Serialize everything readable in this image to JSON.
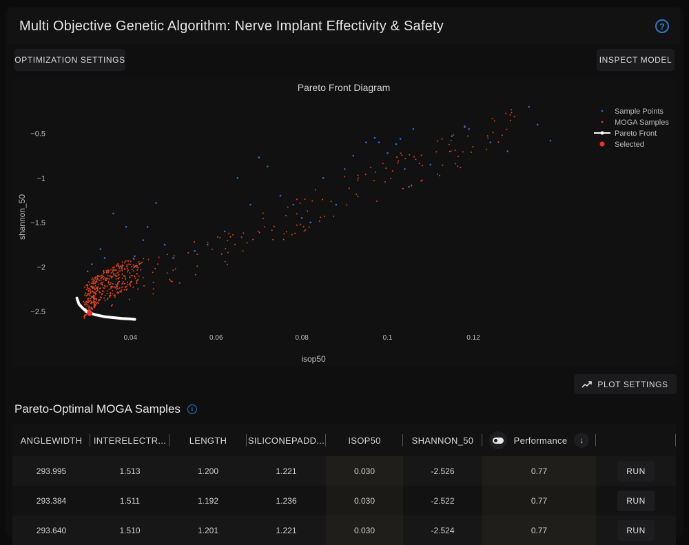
{
  "header": {
    "title": "Multi Objective Genetic Algorithm: Nerve Implant Effectivity & Safety",
    "help_icon": "question-circle-icon"
  },
  "toolbar": {
    "optimization_settings": "OPTIMIZATION SETTINGS",
    "inspect_model": "INSPECT MODEL",
    "plot_settings": "PLOT SETTINGS"
  },
  "chart_data": {
    "type": "scatter",
    "title": "Pareto Front Diagram",
    "xlabel": "isop50",
    "ylabel": "shannon_50",
    "xlim": [
      0.025,
      0.143
    ],
    "ylim": [
      -2.64,
      -0.2
    ],
    "xticks": [
      0.04,
      0.06,
      0.08,
      0.1,
      0.12
    ],
    "yticks": [
      -0.5,
      -1,
      -1.5,
      -2,
      -2.5
    ],
    "xtick_labels": [
      "0.04",
      "0.06",
      "0.08",
      "0.1",
      "0.12"
    ],
    "ytick_labels": [
      "−0.5",
      "−1",
      "−1.5",
      "−2",
      "−2.5"
    ],
    "legend_position": "top-right",
    "colors": {
      "sample_points": "#2d6fd6",
      "moga_samples": "#e0441a",
      "pareto_front": "#ffffff",
      "selected": "#ff2a2a"
    },
    "series": [
      {
        "name": "Sample Points",
        "marker": "dot",
        "points": [
          [
            0.036,
            -1.4
          ],
          [
            0.038,
            -2.0
          ],
          [
            0.039,
            -1.55
          ],
          [
            0.041,
            -1.88
          ],
          [
            0.043,
            -1.7
          ],
          [
            0.044,
            -1.55
          ],
          [
            0.046,
            -1.28
          ],
          [
            0.048,
            -1.75
          ],
          [
            0.05,
            -1.9
          ],
          [
            0.055,
            -1.82
          ],
          [
            0.058,
            -1.75
          ],
          [
            0.062,
            -1.6
          ],
          [
            0.065,
            -1.0
          ],
          [
            0.068,
            -1.3
          ],
          [
            0.07,
            -0.77
          ],
          [
            0.072,
            -0.87
          ],
          [
            0.075,
            -1.2
          ],
          [
            0.078,
            -1.3
          ],
          [
            0.08,
            -1.45
          ],
          [
            0.082,
            -1.5
          ],
          [
            0.085,
            -1.0
          ],
          [
            0.088,
            -1.3
          ],
          [
            0.09,
            -0.9
          ],
          [
            0.092,
            -0.75
          ],
          [
            0.095,
            -0.6
          ],
          [
            0.097,
            -0.55
          ],
          [
            0.098,
            -0.6
          ],
          [
            0.1,
            -0.72
          ],
          [
            0.102,
            -0.62
          ],
          [
            0.103,
            -0.56
          ],
          [
            0.104,
            -0.9
          ],
          [
            0.105,
            -1.1
          ],
          [
            0.106,
            -0.45
          ],
          [
            0.11,
            -0.85
          ],
          [
            0.115,
            -0.53
          ],
          [
            0.118,
            -0.42
          ],
          [
            0.119,
            -0.45
          ],
          [
            0.124,
            -0.6
          ],
          [
            0.128,
            -0.7
          ],
          [
            0.133,
            -0.2
          ],
          [
            0.135,
            -0.4
          ],
          [
            0.138,
            -0.58
          ],
          [
            0.031,
            -1.97
          ],
          [
            0.033,
            -1.8
          ],
          [
            0.034,
            -1.9
          ],
          [
            0.03,
            -2.05
          ]
        ]
      },
      {
        "name": "MOGA Samples",
        "marker": "dot",
        "note": "dense cluster near pareto front"
      },
      {
        "name": "Pareto Front",
        "marker": "line",
        "points": [
          [
            0.0275,
            -2.35
          ],
          [
            0.028,
            -2.42
          ],
          [
            0.029,
            -2.47
          ],
          [
            0.03,
            -2.51
          ],
          [
            0.032,
            -2.54
          ],
          [
            0.034,
            -2.56
          ],
          [
            0.036,
            -2.57
          ],
          [
            0.038,
            -2.58
          ],
          [
            0.04,
            -2.585
          ],
          [
            0.041,
            -2.59
          ]
        ]
      },
      {
        "name": "Selected",
        "marker": "big-dot",
        "points": [
          [
            0.0305,
            -2.52
          ]
        ]
      }
    ]
  },
  "table": {
    "title": "Pareto-Optimal MOGA Samples",
    "info_icon": "info-circle-icon",
    "columns": [
      "ANGLEWIDTH",
      "INTERELECTR...",
      "LENGTH",
      "SILICONEPADD...",
      "ISOP50",
      "SHANNON_50",
      "Performance"
    ],
    "sort_icon": "arrow-down-icon",
    "toggle_icon": "toggle-icon",
    "run_label": "RUN",
    "rows": [
      [
        "293.995",
        "1.513",
        "1.200",
        "1.221",
        "0.030",
        "-2.526",
        "0.77"
      ],
      [
        "293.384",
        "1.511",
        "1.192",
        "1.236",
        "0.030",
        "-2.522",
        "0.77"
      ],
      [
        "293.640",
        "1.510",
        "1.201",
        "1.221",
        "0.030",
        "-2.524",
        "0.77"
      ]
    ]
  }
}
